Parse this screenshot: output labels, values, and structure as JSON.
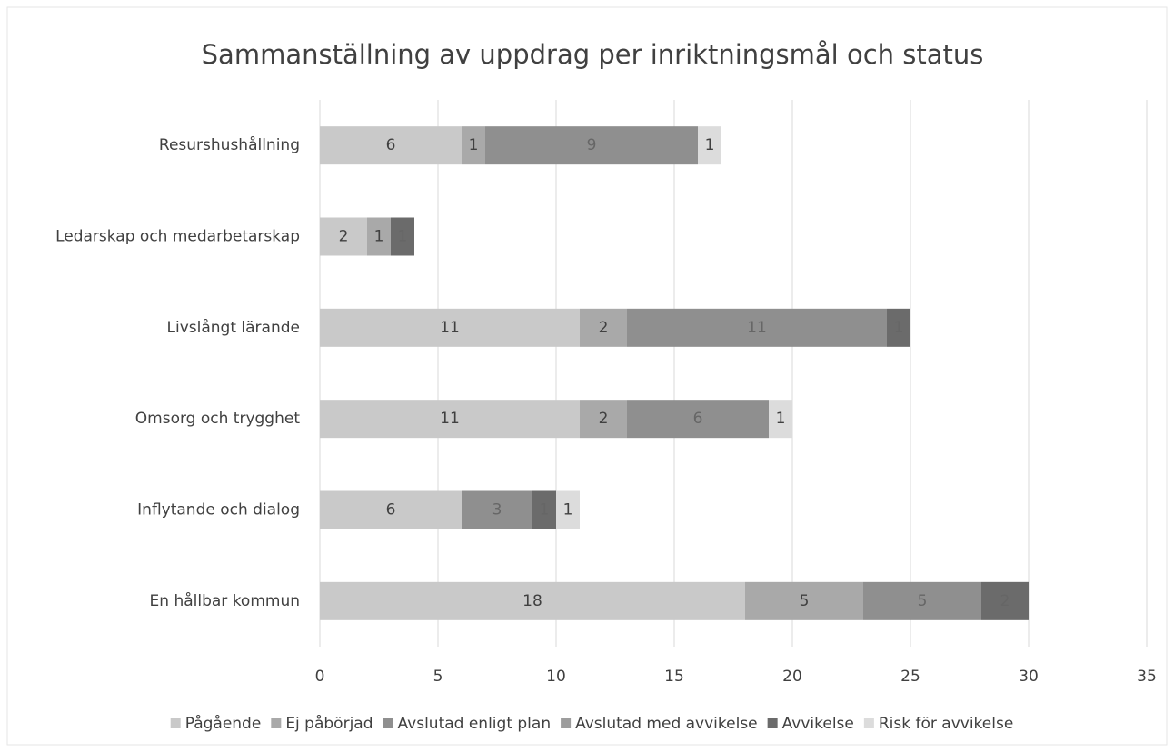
{
  "chart_data": {
    "type": "stacked_bar_horizontal",
    "title": "Sammanställning av uppdrag per inriktningsmål och status",
    "categories": [
      "Resurshushållning",
      "Ledarskap och medarbetarskap",
      "Livslångt lärande",
      "Omsorg och trygghet",
      "Inflytande och dialog",
      "En hållbar kommun"
    ],
    "series": [
      {
        "name": "Pågående",
        "color": "#c9c9c9",
        "values": [
          6,
          2,
          11,
          11,
          6,
          18
        ]
      },
      {
        "name": "Ej påbörjad",
        "color": "#a9a9a9",
        "values": [
          1,
          1,
          2,
          2,
          null,
          5
        ]
      },
      {
        "name": "Avslutad enligt plan",
        "color": "#8f8f8f",
        "values": [
          9,
          null,
          11,
          6,
          3,
          5
        ]
      },
      {
        "name": "Avslutad med avvikelse",
        "color": "#9d9d9d",
        "values": [
          null,
          null,
          null,
          null,
          null,
          null
        ]
      },
      {
        "name": "Avvikelse",
        "color": "#6b6b6b",
        "values": [
          null,
          1,
          1,
          null,
          1,
          2
        ]
      },
      {
        "name": "Risk för avvikelse",
        "color": "#dcdcdc",
        "values": [
          1,
          null,
          null,
          1,
          1,
          null
        ]
      }
    ],
    "xlim": [
      0,
      35
    ],
    "xticks": [
      0,
      5,
      10,
      15,
      20,
      25,
      30,
      35
    ],
    "grid": true,
    "legend": "bottom"
  }
}
